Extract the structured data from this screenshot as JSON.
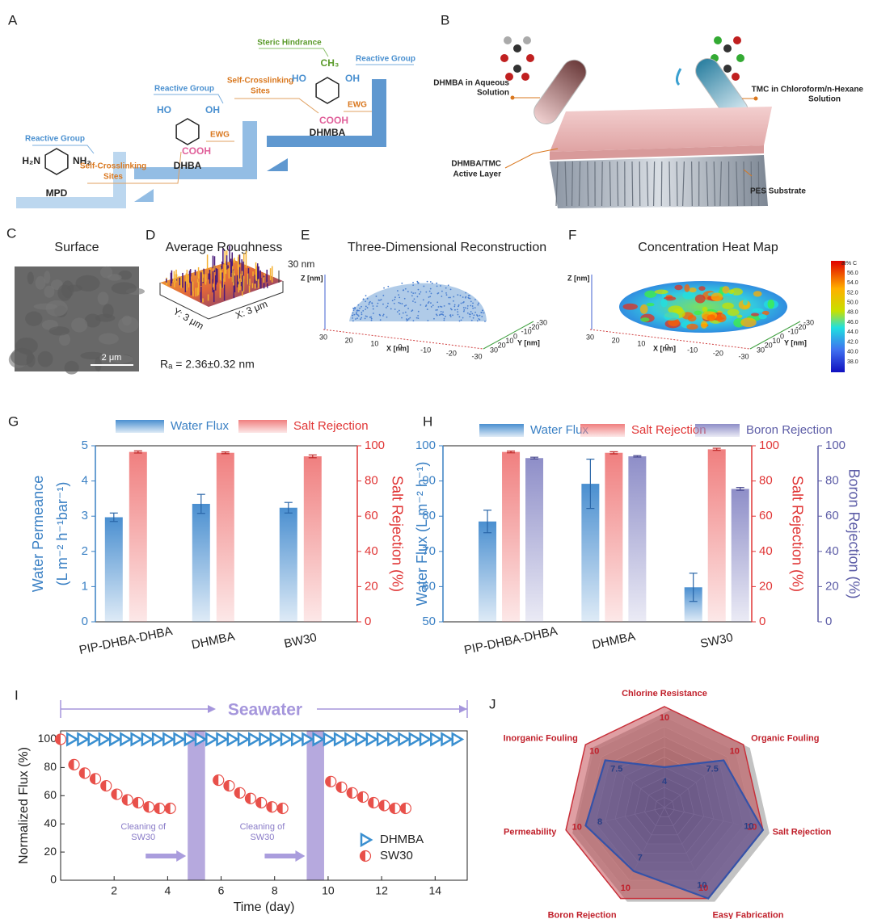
{
  "panels": {
    "A": {
      "label": "A",
      "reactive": "Reactive Group",
      "crosslink": [
        "Self-Crosslinking",
        "Sites"
      ],
      "ewg": "EWG",
      "steric": "Steric Hindrance",
      "mpd": "MPD",
      "dhba": "DHBA",
      "dhmba": "DHMBA",
      "h2n": "H₂N",
      "nh2": "NH₂",
      "ho": "HO",
      "oh": "OH",
      "cooh": "COOH",
      "ch3": "CH₃"
    },
    "B": {
      "label": "B",
      "tube_left": [
        "DHMBA in Aqueous",
        "Solution"
      ],
      "tube_right": [
        "TMC in Chloroform/n-Hexane",
        "Solution"
      ],
      "active_layer": [
        "DHMBA/TMC",
        "Active Layer"
      ],
      "substrate": "PES Substrate"
    },
    "C": {
      "label": "C",
      "title": "Surface",
      "scale_bar": "2 μm"
    },
    "D": {
      "label": "D",
      "title": "Average Roughness",
      "z_range": "30 nm",
      "y_range": "Y: 3 μm",
      "x_range": "X: 3 μm",
      "roughness": "Rₐ = 2.36±0.32 nm"
    },
    "E": {
      "label": "E",
      "title": "Three-Dimensional Reconstruction",
      "z_axis": "Z [nm]",
      "x_axis": "X [nm]",
      "y_axis": "Y [nm]",
      "x_ticks": [
        "30",
        "20",
        "10",
        "0",
        "-10",
        "-20",
        "-30"
      ],
      "y_ticks": [
        "30",
        "20",
        "10",
        "0",
        "-10",
        "-20",
        "-30"
      ]
    },
    "F": {
      "label": "F",
      "title": "Concentration Heat Map",
      "z_axis": "Z [nm]",
      "x_axis": "X [nm]",
      "y_axis": "Y [nm]",
      "x_ticks": [
        "30",
        "20",
        "10",
        "0",
        "-10",
        "-20",
        "-30"
      ],
      "y_ticks": [
        "30",
        "20",
        "10",
        "0",
        "-10",
        "-20",
        "-30"
      ],
      "colorbar_title": "at% C",
      "colorbar_ticks": [
        "56.0",
        "54.0",
        "52.0",
        "50.0",
        "48.0",
        "46.0",
        "44.0",
        "42.0",
        "40.0",
        "38.0"
      ]
    }
  },
  "chart_data": [
    {
      "type": "bar",
      "label": "G",
      "categories": [
        "PIP-DHBA-DHBA",
        "DHMBA",
        "BW30"
      ],
      "series": [
        {
          "name": "Water Flux",
          "color": "#4a8fd0",
          "values": [
            2.97,
            3.35,
            3.24
          ],
          "errors": [
            0.12,
            0.27,
            0.15
          ]
        },
        {
          "name": "Salt Rejection",
          "color": "#f07f7f",
          "axis": "y2",
          "values": [
            96.5,
            96,
            94
          ],
          "errors": [
            0.6,
            0.5,
            0.8
          ]
        }
      ],
      "ylim": [
        0,
        5
      ],
      "yticks": [
        0,
        1,
        2,
        3,
        4,
        5
      ],
      "y2lim": [
        0,
        100
      ],
      "y2ticks": [
        0,
        20,
        40,
        60,
        80,
        100
      ],
      "ylabel": [
        "Water Permeance",
        "(L m⁻² h⁻¹bar⁻¹)"
      ],
      "y2label": "Salt Rejection (%)",
      "legend": "top"
    },
    {
      "type": "bar",
      "label": "H",
      "categories": [
        "PIP-DHBA-DHBA",
        "DHMBA",
        "SW30"
      ],
      "series": [
        {
          "name": "Water Flux",
          "color": "#4a8fd0",
          "values": [
            78.5,
            89.2,
            59.8
          ],
          "errors": [
            3.2,
            7,
            4
          ]
        },
        {
          "name": "Salt Rejection",
          "color": "#f07f7f",
          "axis": "y2",
          "values": [
            96.5,
            96,
            98
          ],
          "errors": [
            0.5,
            0.6,
            0.6
          ]
        },
        {
          "name": "Boron Rejection",
          "color": "#8e8ec8",
          "axis": "y3",
          "values": [
            93,
            94,
            75.5
          ],
          "errors": [
            0.5,
            0.4,
            0.8
          ]
        }
      ],
      "ylim": [
        50,
        100
      ],
      "yticks": [
        50,
        60,
        70,
        80,
        90,
        100
      ],
      "y2lim": [
        0,
        100
      ],
      "y2ticks": [
        0,
        20,
        40,
        60,
        80,
        100
      ],
      "y3lim": [
        0,
        100
      ],
      "y3ticks": [
        0,
        20,
        40,
        60,
        80,
        100
      ],
      "ylabel": [
        "Water Flux (L m⁻² h⁻¹)"
      ],
      "y2label": "Salt Rejection (%)",
      "y3label": "Boron Rejection (%)",
      "legend": "top"
    },
    {
      "type": "scatter",
      "label": "I",
      "banner": "Seawater",
      "annotation": [
        "Cleaning of",
        "SW30"
      ],
      "cleaning_spans": [
        [
          4.75,
          5.4
        ],
        [
          9.2,
          9.85
        ]
      ],
      "xlabel": "Time (day)",
      "ylabel": "Normalized Flux (%)",
      "xlim": [
        0,
        15.2
      ],
      "xticks": [
        2,
        4,
        6,
        8,
        10,
        12,
        14
      ],
      "ylim": [
        0,
        106
      ],
      "yticks": [
        0,
        20,
        40,
        60,
        80,
        100
      ],
      "legend": "lower right",
      "series": [
        {
          "name": "DHMBA",
          "color": "#3a8fd0",
          "x": [
            0.4,
            0.8,
            1.2,
            1.6,
            2,
            2.4,
            2.8,
            3.2,
            3.6,
            4,
            4.4,
            4.8,
            5.2,
            5.6,
            6,
            6.4,
            6.8,
            7.2,
            7.6,
            8,
            8.4,
            8.8,
            9.2,
            9.6,
            10,
            10.4,
            10.8,
            11.2,
            11.6,
            12,
            12.4,
            12.8,
            13.2,
            13.6,
            14,
            14.4,
            14.8
          ],
          "values": [
            100,
            100,
            100,
            100,
            100,
            100,
            100,
            100,
            100,
            100,
            100,
            100,
            100,
            100,
            100,
            100,
            100,
            100,
            100,
            100,
            100,
            100,
            100,
            100,
            100,
            100,
            100,
            100,
            100,
            100,
            100,
            100,
            100,
            100,
            100,
            100,
            100
          ]
        },
        {
          "name": "SW30",
          "color": "#e8504a",
          "x": [
            0,
            0.5,
            0.9,
            1.3,
            1.7,
            2.1,
            2.5,
            2.9,
            3.3,
            3.7,
            4.1,
            5.9,
            6.3,
            6.7,
            7.1,
            7.5,
            7.9,
            8.3,
            10.1,
            10.5,
            10.9,
            11.3,
            11.7,
            12.1,
            12.5,
            12.9
          ],
          "values": [
            100,
            82,
            76,
            72,
            67,
            61,
            57,
            55,
            52,
            51,
            51,
            71,
            67,
            62,
            58,
            55,
            52,
            51,
            70,
            66,
            62,
            59,
            55,
            53,
            51,
            51
          ]
        }
      ]
    },
    {
      "type": "radar",
      "label": "J",
      "categories": [
        "Chlorine Resistance",
        "Organic Fouling",
        "Salt Rejection",
        "Easy Fabrication",
        "Boron Rejection",
        "Permeability",
        "Inorganic Fouling"
      ],
      "rlim": [
        0,
        10
      ],
      "series": [
        {
          "name": "DHMBA",
          "color": "#c8303a",
          "values": [
            10,
            10,
            10,
            10,
            10,
            10,
            10
          ]
        },
        {
          "name": "SW30",
          "color": "#3552a8",
          "values": [
            4,
            7.5,
            10,
            10,
            7,
            8,
            7.5
          ]
        }
      ]
    }
  ]
}
